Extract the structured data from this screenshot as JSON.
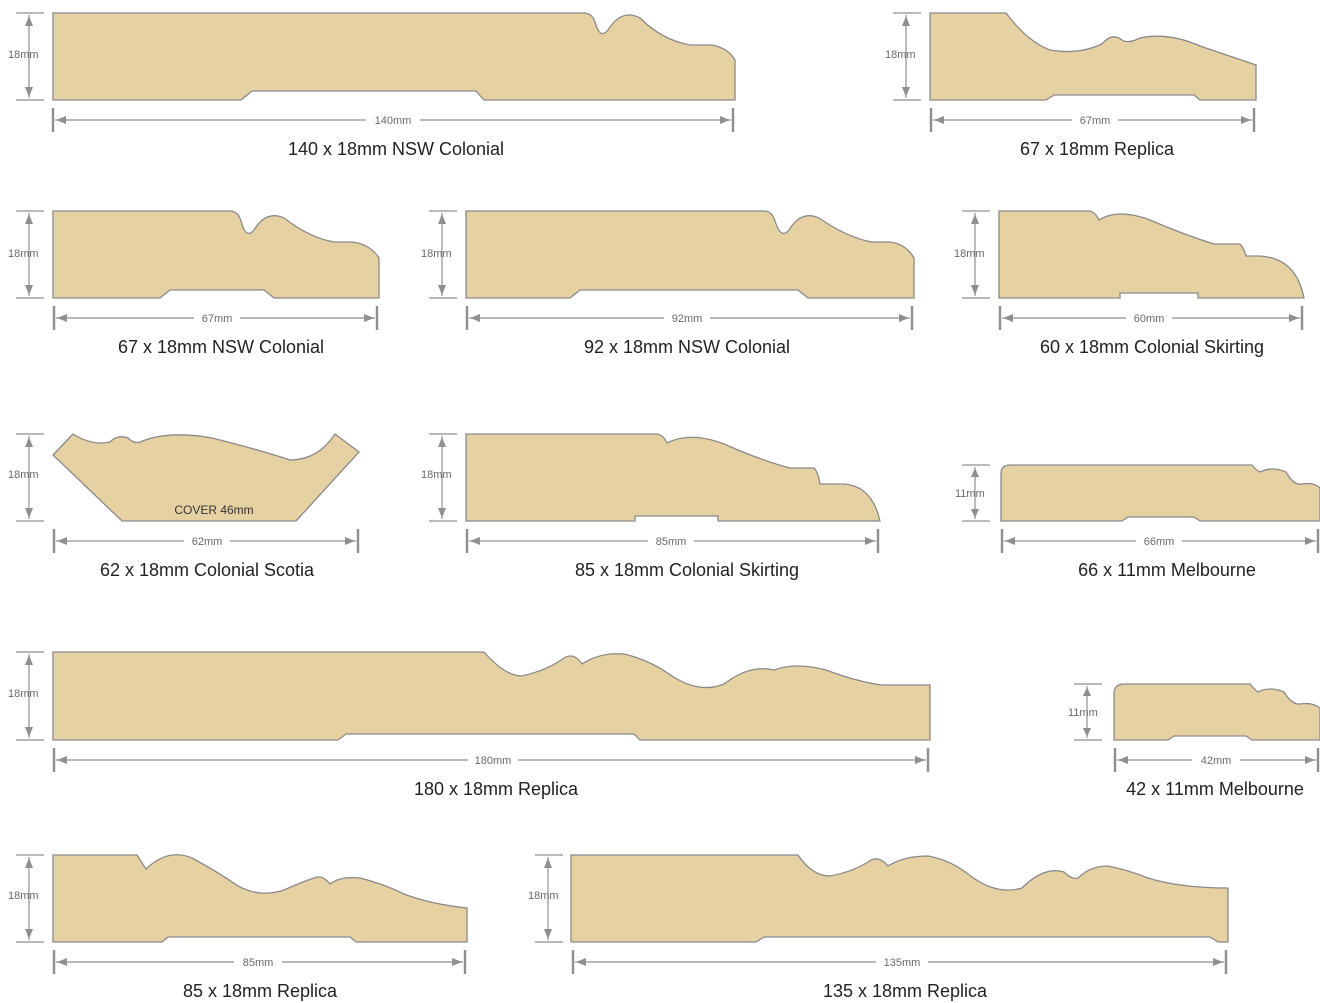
{
  "profiles": [
    {
      "name": "140 x 18mm NSW Colonial",
      "width": "140mm",
      "height": "18mm"
    },
    {
      "name": "67 x 18mm Replica",
      "width": "67mm",
      "height": "18mm"
    },
    {
      "name": "67 x 18mm NSW Colonial",
      "width": "67mm",
      "height": "18mm"
    },
    {
      "name": "92 x 18mm NSW Colonial",
      "width": "92mm",
      "height": "18mm"
    },
    {
      "name": "60 x 18mm Colonial Skirting",
      "width": "60mm",
      "height": "18mm"
    },
    {
      "name": "62 x 18mm Colonial Scotia",
      "width": "62mm",
      "height": "18mm",
      "cover": "COVER 46mm"
    },
    {
      "name": "85 x 18mm Colonial Skirting",
      "width": "85mm",
      "height": "18mm"
    },
    {
      "name": "66 x 11mm Melbourne",
      "width": "66mm",
      "height": "11mm"
    },
    {
      "name": "180 x 18mm Replica",
      "width": "180mm",
      "height": "18mm"
    },
    {
      "name": "42 x 11mm Melbourne",
      "width": "42mm",
      "height": "11mm"
    },
    {
      "name": "85 x 18mm Replica",
      "width": "85mm",
      "height": "18mm"
    },
    {
      "name": "135 x 18mm Replica",
      "width": "135mm",
      "height": "18mm"
    }
  ],
  "colors": {
    "timber": "#e6d1a3",
    "outline": "#8a8a8a",
    "dimension": "#8f8f8f"
  }
}
